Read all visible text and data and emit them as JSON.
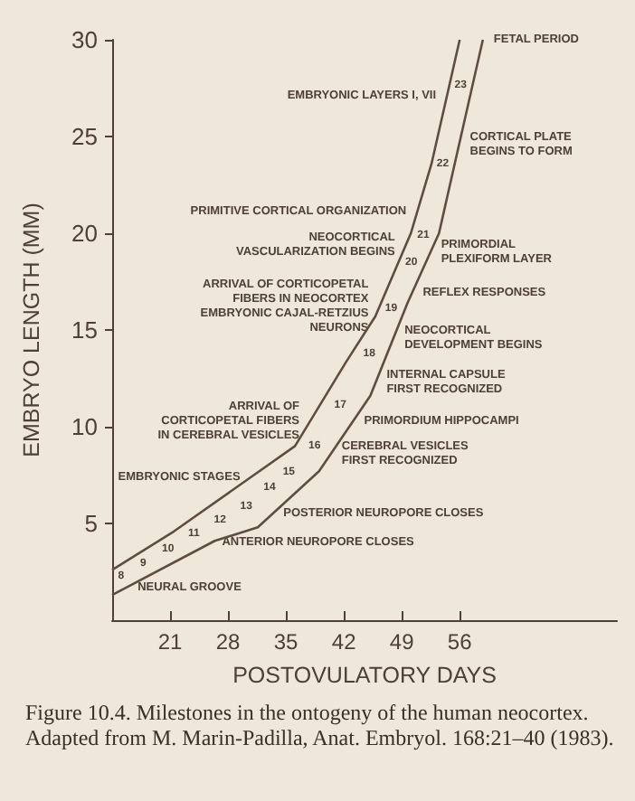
{
  "chart_data": {
    "type": "line",
    "xlabel": "POSTOVULATORY DAYS",
    "ylabel": "EMBRYO LENGTH (MM)",
    "xlim": [
      14,
      75
    ],
    "xticks": [
      21,
      28,
      35,
      42,
      49,
      56
    ],
    "ylim": [
      0,
      30
    ],
    "yticks": [
      5,
      10,
      15,
      20,
      25,
      30
    ],
    "grid": false,
    "marker": "none",
    "series": [
      {
        "color": "#5e4e40",
        "x": [
          14,
          21.5,
          36.1,
          42.2,
          45.8,
          50.1,
          52.6,
          56
        ],
        "values": [
          2.6,
          4.6,
          9,
          13.3,
          15.7,
          20,
          23.6,
          30
        ]
      },
      {
        "color": "#5e4e40",
        "x": [
          14,
          26.4,
          31.6,
          39,
          45.2,
          49.7,
          53.5,
          57.1,
          58.8
        ],
        "values": [
          1.3,
          4.1,
          4.8,
          7.7,
          11.6,
          16.4,
          20,
          26.8,
          30
        ]
      }
    ],
    "annotations": [
      {
        "text": "FETAL PERIOD",
        "x": 59.0,
        "y": 30
      },
      {
        "text": "EMBRYONIC LAYERS I, VII",
        "x": 54.26,
        "y": 27.1
      },
      {
        "text": "CORTICAL PLATE\nBEGINS TO FORM",
        "x": 56.14,
        "y": 24.6
      },
      {
        "text": "PRIMITIVE CORTICAL ORGANIZATION",
        "x": 50.66,
        "y": 21.1
      },
      {
        "text": "NEOCORTICAL\nVASCULARIZATION BEGINS",
        "x": 49.3,
        "y": 19.4
      },
      {
        "text": "PRIMORDIAL\nPLEXIFORM LAYER",
        "x": 52.64,
        "y": 19
      },
      {
        "text": "REFLEX RESPONSES",
        "x": 50.43,
        "y": 16.9
      },
      {
        "text": "ARRIVAL OF CORTICOPETAL\nFIBERS IN NEOCORTEX\nEMBRYONIC CAJAL-RETZIUS\nNEURONS",
        "x": 46.1,
        "y": 16.2
      },
      {
        "text": "NEOCORTICAL\nDEVELOPMENT BEGINS",
        "x": 48.21,
        "y": 14.6
      },
      {
        "text": "INTERNAL CAPSULE\nFIRST RECOGNIZED",
        "x": 46.06,
        "y": 12.3
      },
      {
        "text": "ARRIVAL OF\nCORTICOPETAL FIBERS\nIN CEREBRAL VESICLES",
        "x": 37.74,
        "y": 10.3
      },
      {
        "text": "PRIMORDIUM HIPPOCAMPI",
        "x": 43.33,
        "y": 10.3
      },
      {
        "text": "CEREBRAL VESICLES\nFIRST RECOGNIZED",
        "x": 40.63,
        "y": 8.6
      },
      {
        "text": "EMBRYONIC STAGES",
        "x": 30.59,
        "y": 7.4
      },
      {
        "text": "POSTERIOR NEUROPORE CLOSES",
        "x": 33.59,
        "y": 5.5
      },
      {
        "text": "ANTERIOR NEUROPORE CLOSES",
        "x": 26.16,
        "y": 4
      },
      {
        "text": "NEURAL GROOVE",
        "x": 15.97,
        "y": 1.7
      },
      {
        "text": "8",
        "x": 15.8,
        "y": 1.8
      },
      {
        "text": "9",
        "x": 18.5,
        "y": 2.4
      },
      {
        "text": "10",
        "x": 21.5,
        "y": 3.1
      },
      {
        "text": "11",
        "x": 24.8,
        "y": 3.8
      },
      {
        "text": "12",
        "x": 28.2,
        "y": 4.4
      },
      {
        "text": "13",
        "x": 31.6,
        "y": 4.9
      },
      {
        "text": "14",
        "x": 34.3,
        "y": 6
      },
      {
        "text": "15",
        "x": 36.8,
        "y": 6.9
      },
      {
        "text": "16",
        "x": 40.2,
        "y": 8.5
      },
      {
        "text": "17",
        "x": 43.4,
        "y": 10.6
      },
      {
        "text": "18",
        "x": 46.7,
        "y": 13.3
      },
      {
        "text": "19",
        "x": 49,
        "y": 15.8
      },
      {
        "text": "20",
        "x": 51.5,
        "y": 18.2
      },
      {
        "text": "21",
        "x": 53.1,
        "y": 19.7
      },
      {
        "text": "22",
        "x": 55.3,
        "y": 23.5
      },
      {
        "text": "23",
        "x": 57.4,
        "y": 27.5
      },
      "Figure 10.4. Milestones in the ontogeny of the human neocortex. Adapted from M. Marin-Padilla, Anat. Embryol. 168:21–40 (1983)."
    ]
  }
}
